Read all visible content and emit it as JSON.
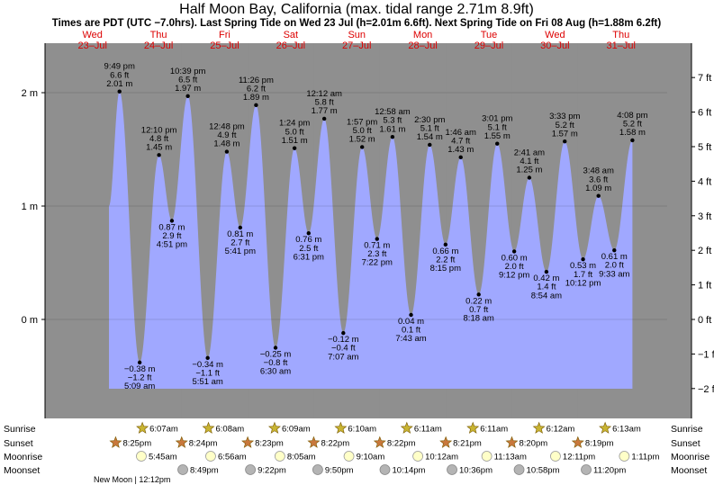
{
  "header": {
    "title": "Half Moon Bay, California (max. tidal range 2.71m 8.9ft)",
    "subtitle": "Times are PDT (UTC −7.0hrs). Last Spring Tide on Wed 23 Jul (h=2.01m 6.6ft). Next Spring Tide on Fri 08 Aug (h=1.88m 6.2ft)"
  },
  "days": [
    {
      "name": "Wed",
      "date": "23–Jul"
    },
    {
      "name": "Thu",
      "date": "24–Jul"
    },
    {
      "name": "Fri",
      "date": "25–Jul"
    },
    {
      "name": "Sat",
      "date": "26–Jul"
    },
    {
      "name": "Sun",
      "date": "27–Jul"
    },
    {
      "name": "Mon",
      "date": "28–Jul"
    },
    {
      "name": "Tue",
      "date": "29–Jul"
    },
    {
      "name": "Wed",
      "date": "30–Jul"
    },
    {
      "name": "Thu",
      "date": "31–Jul"
    }
  ],
  "chart_data": {
    "type": "area",
    "title": "Half Moon Bay, California (max. tidal range 2.71m 8.9ft)",
    "x_unit": "hours from 00:00 Wed 23 Jul (PDT)",
    "y_left": {
      "label": "",
      "unit": "m",
      "range": [
        -0.8,
        2.4
      ],
      "ticks": [
        0,
        1,
        2
      ],
      "tick_labels": [
        "0 m",
        "1 m",
        "2 m"
      ]
    },
    "y_right": {
      "label": "",
      "unit": "ft",
      "range": [
        -2.6,
        7.8
      ],
      "ticks": [
        -2,
        -1,
        0,
        1,
        2,
        3,
        4,
        5,
        6,
        7
      ],
      "tick_labels": [
        "−2 ft",
        "−1 ft",
        "0 ft",
        "1 ft",
        "2 ft",
        "3 ft",
        "4 ft",
        "5 ft",
        "6 ft",
        "7 ft"
      ]
    },
    "series_start": {
      "t": 18,
      "h": 1.0
    },
    "series_end": {
      "t": 220,
      "h": 1.5
    },
    "extremes": [
      {
        "t": 21.82,
        "h": 2.01,
        "kind": "high",
        "time": "9:49 pm",
        "ft": "6.6 ft",
        "m": "2.01 m"
      },
      {
        "t": 29.15,
        "h": -0.38,
        "kind": "low",
        "time": "5:09 am",
        "ft": "−1.2 ft",
        "m": "−0.38 m"
      },
      {
        "t": 36.17,
        "h": 1.45,
        "kind": "high",
        "time": "12:10 pm",
        "ft": "4.8 ft",
        "m": "1.45 m"
      },
      {
        "t": 40.85,
        "h": 0.87,
        "kind": "low",
        "time": "4:51 pm",
        "ft": "2.9 ft",
        "m": "0.87 m"
      },
      {
        "t": 46.65,
        "h": 1.97,
        "kind": "high",
        "time": "10:39 pm",
        "ft": "6.5 ft",
        "m": "1.97 m"
      },
      {
        "t": 53.85,
        "h": -0.34,
        "kind": "low",
        "time": "5:51 am",
        "ft": "−1.1 ft",
        "m": "−0.34 m"
      },
      {
        "t": 60.8,
        "h": 1.48,
        "kind": "high",
        "time": "12:48 pm",
        "ft": "4.9 ft",
        "m": "1.48 m"
      },
      {
        "t": 65.68,
        "h": 0.81,
        "kind": "low",
        "time": "5:41 pm",
        "ft": "2.7 ft",
        "m": "0.81 m"
      },
      {
        "t": 71.43,
        "h": 1.89,
        "kind": "high",
        "time": "11:26 pm",
        "ft": "6.2 ft",
        "m": "1.89 m"
      },
      {
        "t": 78.5,
        "h": -0.25,
        "kind": "low",
        "time": "6:30 am",
        "ft": "−0.8 ft",
        "m": "−0.25 m"
      },
      {
        "t": 85.4,
        "h": 1.51,
        "kind": "high",
        "time": "1:24 pm",
        "ft": "5.0 ft",
        "m": "1.51 m"
      },
      {
        "t": 90.52,
        "h": 0.76,
        "kind": "low",
        "time": "6:31 pm",
        "ft": "2.5 ft",
        "m": "0.76 m"
      },
      {
        "t": 96.2,
        "h": 1.77,
        "kind": "high",
        "time": "12:12 am",
        "ft": "5.8 ft",
        "m": "1.77 m"
      },
      {
        "t": 103.12,
        "h": -0.12,
        "kind": "low",
        "time": "7:07 am",
        "ft": "−0.4 ft",
        "m": "−0.12 m"
      },
      {
        "t": 109.95,
        "h": 1.52,
        "kind": "high",
        "time": "1:57 pm",
        "ft": "5.0 ft",
        "m": "1.52 m"
      },
      {
        "t": 115.37,
        "h": 0.71,
        "kind": "low",
        "time": "7:22 pm",
        "ft": "2.3 ft",
        "m": "0.71 m"
      },
      {
        "t": 120.97,
        "h": 1.61,
        "kind": "high",
        "time": "12:58 am",
        "ft": "5.3 ft",
        "m": "1.61 m"
      },
      {
        "t": 127.72,
        "h": 0.04,
        "kind": "low",
        "time": "7:43 am",
        "ft": "0.1 ft",
        "m": "0.04 m"
      },
      {
        "t": 134.5,
        "h": 1.54,
        "kind": "high",
        "time": "2:30 pm",
        "ft": "5.1 ft",
        "m": "1.54 m"
      },
      {
        "t": 140.25,
        "h": 0.66,
        "kind": "low",
        "time": "8:15 pm",
        "ft": "2.2 ft",
        "m": "0.66 m"
      },
      {
        "t": 145.77,
        "h": 1.43,
        "kind": "high",
        "time": "1:46 am",
        "ft": "4.7 ft",
        "m": "1.43 m"
      },
      {
        "t": 152.3,
        "h": 0.22,
        "kind": "low",
        "time": "8:18 am",
        "ft": "0.7 ft",
        "m": "0.22 m"
      },
      {
        "t": 159.02,
        "h": 1.55,
        "kind": "high",
        "time": "3:01 pm",
        "ft": "5.1 ft",
        "m": "1.55 m"
      },
      {
        "t": 165.2,
        "h": 0.6,
        "kind": "low",
        "time": "9:12 pm",
        "ft": "2.0 ft",
        "m": "0.60 m"
      },
      {
        "t": 170.68,
        "h": 1.25,
        "kind": "high",
        "time": "2:41 am",
        "ft": "4.1 ft",
        "m": "1.25 m"
      },
      {
        "t": 176.9,
        "h": 0.42,
        "kind": "low",
        "time": "8:54 am",
        "ft": "1.4 ft",
        "m": "0.42 m"
      },
      {
        "t": 183.55,
        "h": 1.57,
        "kind": "high",
        "time": "3:33 pm",
        "ft": "5.2 ft",
        "m": "1.57 m"
      },
      {
        "t": 190.2,
        "h": 0.53,
        "kind": "low",
        "time": "10:12 pm",
        "ft": "1.7 ft",
        "m": "0.53 m"
      },
      {
        "t": 195.8,
        "h": 1.09,
        "kind": "high",
        "time": "3:48 am",
        "ft": "3.6 ft",
        "m": "1.09 m"
      },
      {
        "t": 201.55,
        "h": 0.61,
        "kind": "low",
        "time": "9:33 am",
        "ft": "2.0 ft",
        "m": "0.61 m"
      },
      {
        "t": 208.13,
        "h": 1.58,
        "kind": "high",
        "time": "4:08 pm",
        "ft": "5.2 ft",
        "m": "1.58 m"
      }
    ],
    "sunrise": [
      {
        "t": 30.12,
        "label": "6:07am"
      },
      {
        "t": 54.13,
        "label": "6:08am"
      },
      {
        "t": 78.15,
        "label": "6:09am"
      },
      {
        "t": 102.17,
        "label": "6:10am"
      },
      {
        "t": 126.18,
        "label": "6:11am"
      },
      {
        "t": 150.18,
        "label": "6:11am"
      },
      {
        "t": 174.2,
        "label": "6:12am"
      },
      {
        "t": 198.22,
        "label": "6:13am"
      }
    ],
    "sunset": [
      {
        "t": 20.42,
        "label": "8:25pm"
      },
      {
        "t": 44.4,
        "label": "8:24pm"
      },
      {
        "t": 68.38,
        "label": "8:23pm"
      },
      {
        "t": 92.37,
        "label": "8:22pm"
      },
      {
        "t": 116.37,
        "label": "8:22pm"
      },
      {
        "t": 140.35,
        "label": "8:21pm"
      },
      {
        "t": 164.33,
        "label": "8:20pm"
      },
      {
        "t": 188.32,
        "label": "8:19pm"
      }
    ],
    "moonrise": [
      {
        "t": 29.75,
        "label": "5:45am"
      },
      {
        "t": 54.93,
        "label": "6:56am"
      },
      {
        "t": 80.08,
        "label": "8:05am"
      },
      {
        "t": 105.17,
        "label": "9:10am"
      },
      {
        "t": 130.2,
        "label": "10:12am"
      },
      {
        "t": 155.22,
        "label": "11:13am"
      },
      {
        "t": 180.18,
        "label": "12:11pm"
      },
      {
        "t": 205.18,
        "label": "1:11pm"
      }
    ],
    "moonset": [
      {
        "t": 44.82,
        "label": "8:49pm"
      },
      {
        "t": 69.37,
        "label": "9:22pm"
      },
      {
        "t": 93.83,
        "label": "9:50pm"
      },
      {
        "t": 118.23,
        "label": "10:14pm"
      },
      {
        "t": 142.6,
        "label": "10:36pm"
      },
      {
        "t": 166.97,
        "label": "10:58pm"
      },
      {
        "t": 191.33,
        "label": "11:20pm"
      }
    ],
    "moon_phase": {
      "label": "New Moon",
      "time": "12:12pm"
    },
    "row_labels": [
      "Sunrise",
      "Sunset",
      "Moonrise",
      "Moonset"
    ],
    "colors": {
      "day": "#ffffc0",
      "night": "#8f8f8f",
      "water": "#a0a8ff",
      "day_text": "#dd0000",
      "edge": "#808080"
    }
  }
}
